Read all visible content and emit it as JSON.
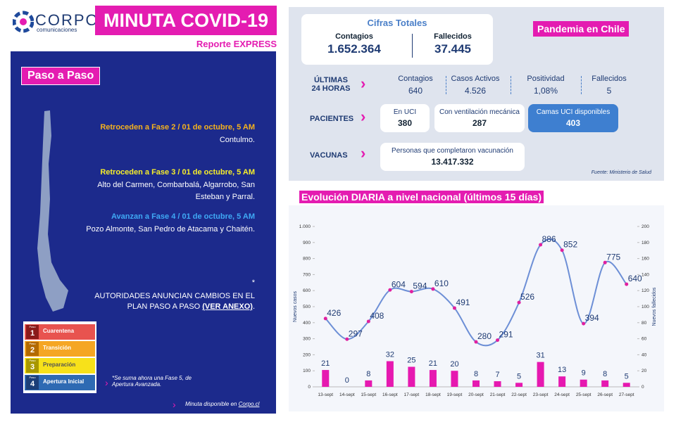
{
  "header": {
    "logo": "CORPO",
    "logo_sub": "comunicaciones",
    "title": "MINUTA COVID-19",
    "subtitle": "Reporte EXPRESS"
  },
  "paso_a_paso": {
    "title": "Paso a Paso",
    "items": [
      {
        "heading": "Retroceden a Fase  2 / 01 de octubre, 5 AM",
        "text": "Contulmo."
      },
      {
        "heading": "Retroceden a Fase  3 / 01 de octubre, 5 AM",
        "text": "Alto del Carmen,  Combarbalá,  Algarrobo, San Esteban  y Parral."
      },
      {
        "heading": "Avanzan  a Fase 4 / 01 de octubre, 5 AM",
        "text": "Pozo Almonte, San Pedro de Atacama y Chaitén."
      }
    ],
    "notice": {
      "star": "*",
      "text": "AUTORIDADES ANUNCIAN CAMBIOS EN EL PLAN PASO A PASO",
      "link": "(VER ANEXO)",
      "end": "."
    },
    "legend": [
      {
        "tag": "Paso",
        "num": "1",
        "label": "Cuarentena"
      },
      {
        "tag": "Paso",
        "num": "2",
        "label": "Transición"
      },
      {
        "tag": "Paso",
        "num": "3",
        "label": "Preparación"
      },
      {
        "tag": "Paso",
        "num": "4",
        "label": "Apertura Inicial"
      }
    ],
    "note": "*Se suma ahora una Fase 5, de Apertura Avanzada.",
    "footer": "Minuta disponible en",
    "footer_link": "Corpo.cl"
  },
  "totals": {
    "title": "Cifras Totales",
    "contagios_label": "Contagios",
    "contagios": "1.652.364",
    "fallecidos_label": "Fallecidos",
    "fallecidos": "37.445",
    "badge": "Pandemia en Chile"
  },
  "last24": {
    "label": "ÚLTIMAS 24 HORAS",
    "items": [
      {
        "label": "Contagios",
        "value": "640"
      },
      {
        "label": "Casos Activos",
        "value": "4.526"
      },
      {
        "label": "Positividad",
        "value": "1,08%"
      },
      {
        "label": "Fallecidos",
        "value": "5"
      }
    ]
  },
  "patients": {
    "label": "PACIENTES",
    "items": [
      {
        "label": "En UCI",
        "value": "380"
      },
      {
        "label": "Con ventilación mecánica",
        "value": "287"
      },
      {
        "label": "Camas UCI disponibles",
        "value": "403"
      }
    ]
  },
  "vaccines": {
    "label": "VACUNAS",
    "items": [
      {
        "label": "Personas que completaron vacunación",
        "value": "13.417.332"
      }
    ]
  },
  "source": "Fuente: Ministerio de Salud",
  "chart_data": {
    "type": "combo",
    "title": "Evolución DIARIA a nivel nacional (últimos 15 días)",
    "categories": [
      "13-sept",
      "14-sept",
      "15-sept",
      "16-sept",
      "17-sept",
      "18-sept",
      "19-sept",
      "20-sept",
      "21-sept",
      "22-sept",
      "23-sept",
      "24-sept",
      "25-sept",
      "26-sept",
      "27-sept"
    ],
    "ylabel": "Nuevos casos",
    "y2label": "Nuevos fallecidos",
    "series": [
      {
        "type": "line",
        "color": "#6d8fd6",
        "point_color": "#e020a0",
        "values": [
          426,
          297,
          408,
          604,
          594,
          610,
          491,
          280,
          291,
          526,
          886,
          852,
          394,
          775,
          640
        ]
      },
      {
        "type": "bar",
        "axis": "y2",
        "color": "#e619b0",
        "values": [
          21,
          0,
          8,
          32,
          25,
          21,
          20,
          8,
          7,
          5,
          31,
          13,
          9,
          8,
          5
        ]
      }
    ],
    "ylim": [
      0,
      1000
    ],
    "yticks": [
      0,
      100,
      200,
      300,
      400,
      500,
      600,
      700,
      800,
      900,
      {
        "value": 1000,
        "label": "1.000"
      }
    ],
    "y2lim": [
      0,
      200
    ],
    "y2ticks": [
      0,
      20,
      40,
      60,
      80,
      100,
      120,
      140,
      160,
      180,
      200
    ],
    "grid": false
  }
}
